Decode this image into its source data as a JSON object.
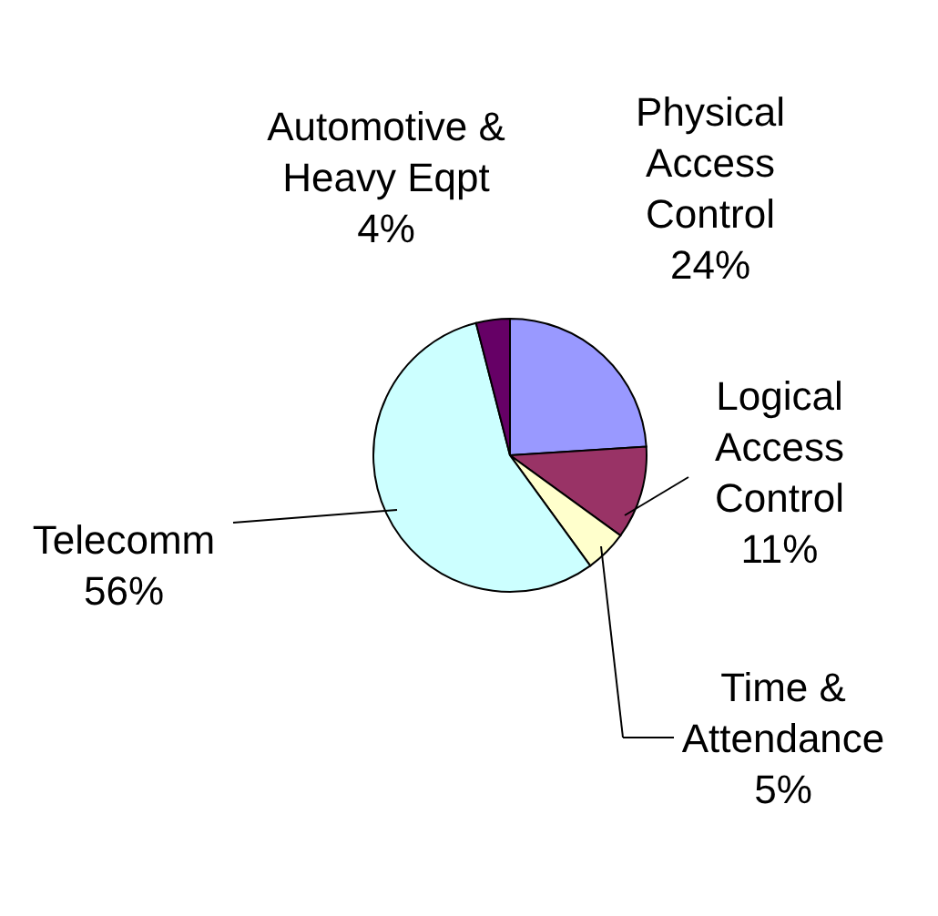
{
  "chart_data": {
    "type": "pie",
    "categories": [
      "Physical Access Control",
      "Logical Access Control",
      "Time & Attendance",
      "Telecomm",
      "Automotive & Heavy Eqpt"
    ],
    "values": [
      24,
      11,
      5,
      56,
      4
    ],
    "colors": [
      "#9999ff",
      "#993366",
      "#ffffcc",
      "#ccffff",
      "#660066"
    ],
    "value_labels": [
      "24%",
      "11%",
      "5%",
      "56%",
      "4%"
    ]
  }
}
